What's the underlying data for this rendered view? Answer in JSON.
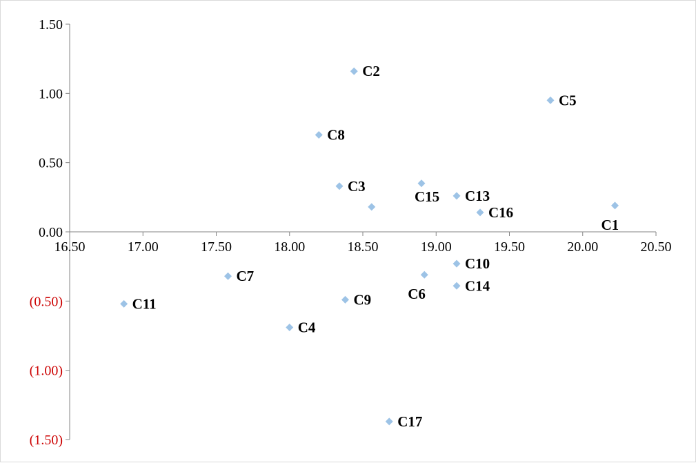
{
  "chart_data": {
    "type": "scatter",
    "title": "",
    "xlabel": "",
    "ylabel": "",
    "xlim": [
      16.5,
      20.5
    ],
    "ylim": [
      -1.5,
      1.5
    ],
    "x_ticks": [
      "16.50",
      "17.00",
      "17.50",
      "18.00",
      "18.50",
      "19.00",
      "19.50",
      "20.00",
      "20.50"
    ],
    "y_ticks": [
      "1.50",
      "1.00",
      "0.50",
      "0.00",
      "(0.50)",
      "(1.00)",
      "(1.50)"
    ],
    "grid": false,
    "legend": "none",
    "marker": "diamond",
    "colors": {
      "marker": "#9dc3e6",
      "negative_tick": "#cc0000",
      "axis": "#868686",
      "text": "#000000"
    },
    "points": [
      {
        "label": "C1",
        "x": 20.22,
        "y": 0.19
      },
      {
        "label": "C2",
        "x": 18.44,
        "y": 1.16
      },
      {
        "label": "C3",
        "x": 18.34,
        "y": 0.33
      },
      {
        "label": "C4",
        "x": 18.0,
        "y": -0.69
      },
      {
        "label": "C5",
        "x": 19.78,
        "y": 0.95
      },
      {
        "label": "C6",
        "x": 18.92,
        "y": -0.31
      },
      {
        "label": "C7",
        "x": 17.58,
        "y": -0.32
      },
      {
        "label": "C8",
        "x": 18.2,
        "y": 0.7
      },
      {
        "label": "C9",
        "x": 18.38,
        "y": -0.49
      },
      {
        "label": "C10",
        "x": 19.14,
        "y": -0.23
      },
      {
        "label": "C11",
        "x": 16.87,
        "y": -0.52
      },
      {
        "label": "C13",
        "x": 19.14,
        "y": 0.26
      },
      {
        "label": "C14",
        "x": 19.14,
        "y": -0.39
      },
      {
        "label": "C15",
        "x": 18.9,
        "y": 0.35
      },
      {
        "label": "C16",
        "x": 19.3,
        "y": 0.14
      },
      {
        "label": "C17",
        "x": 18.68,
        "y": -1.37
      },
      {
        "label": "",
        "x": 18.56,
        "y": 0.18
      }
    ]
  }
}
